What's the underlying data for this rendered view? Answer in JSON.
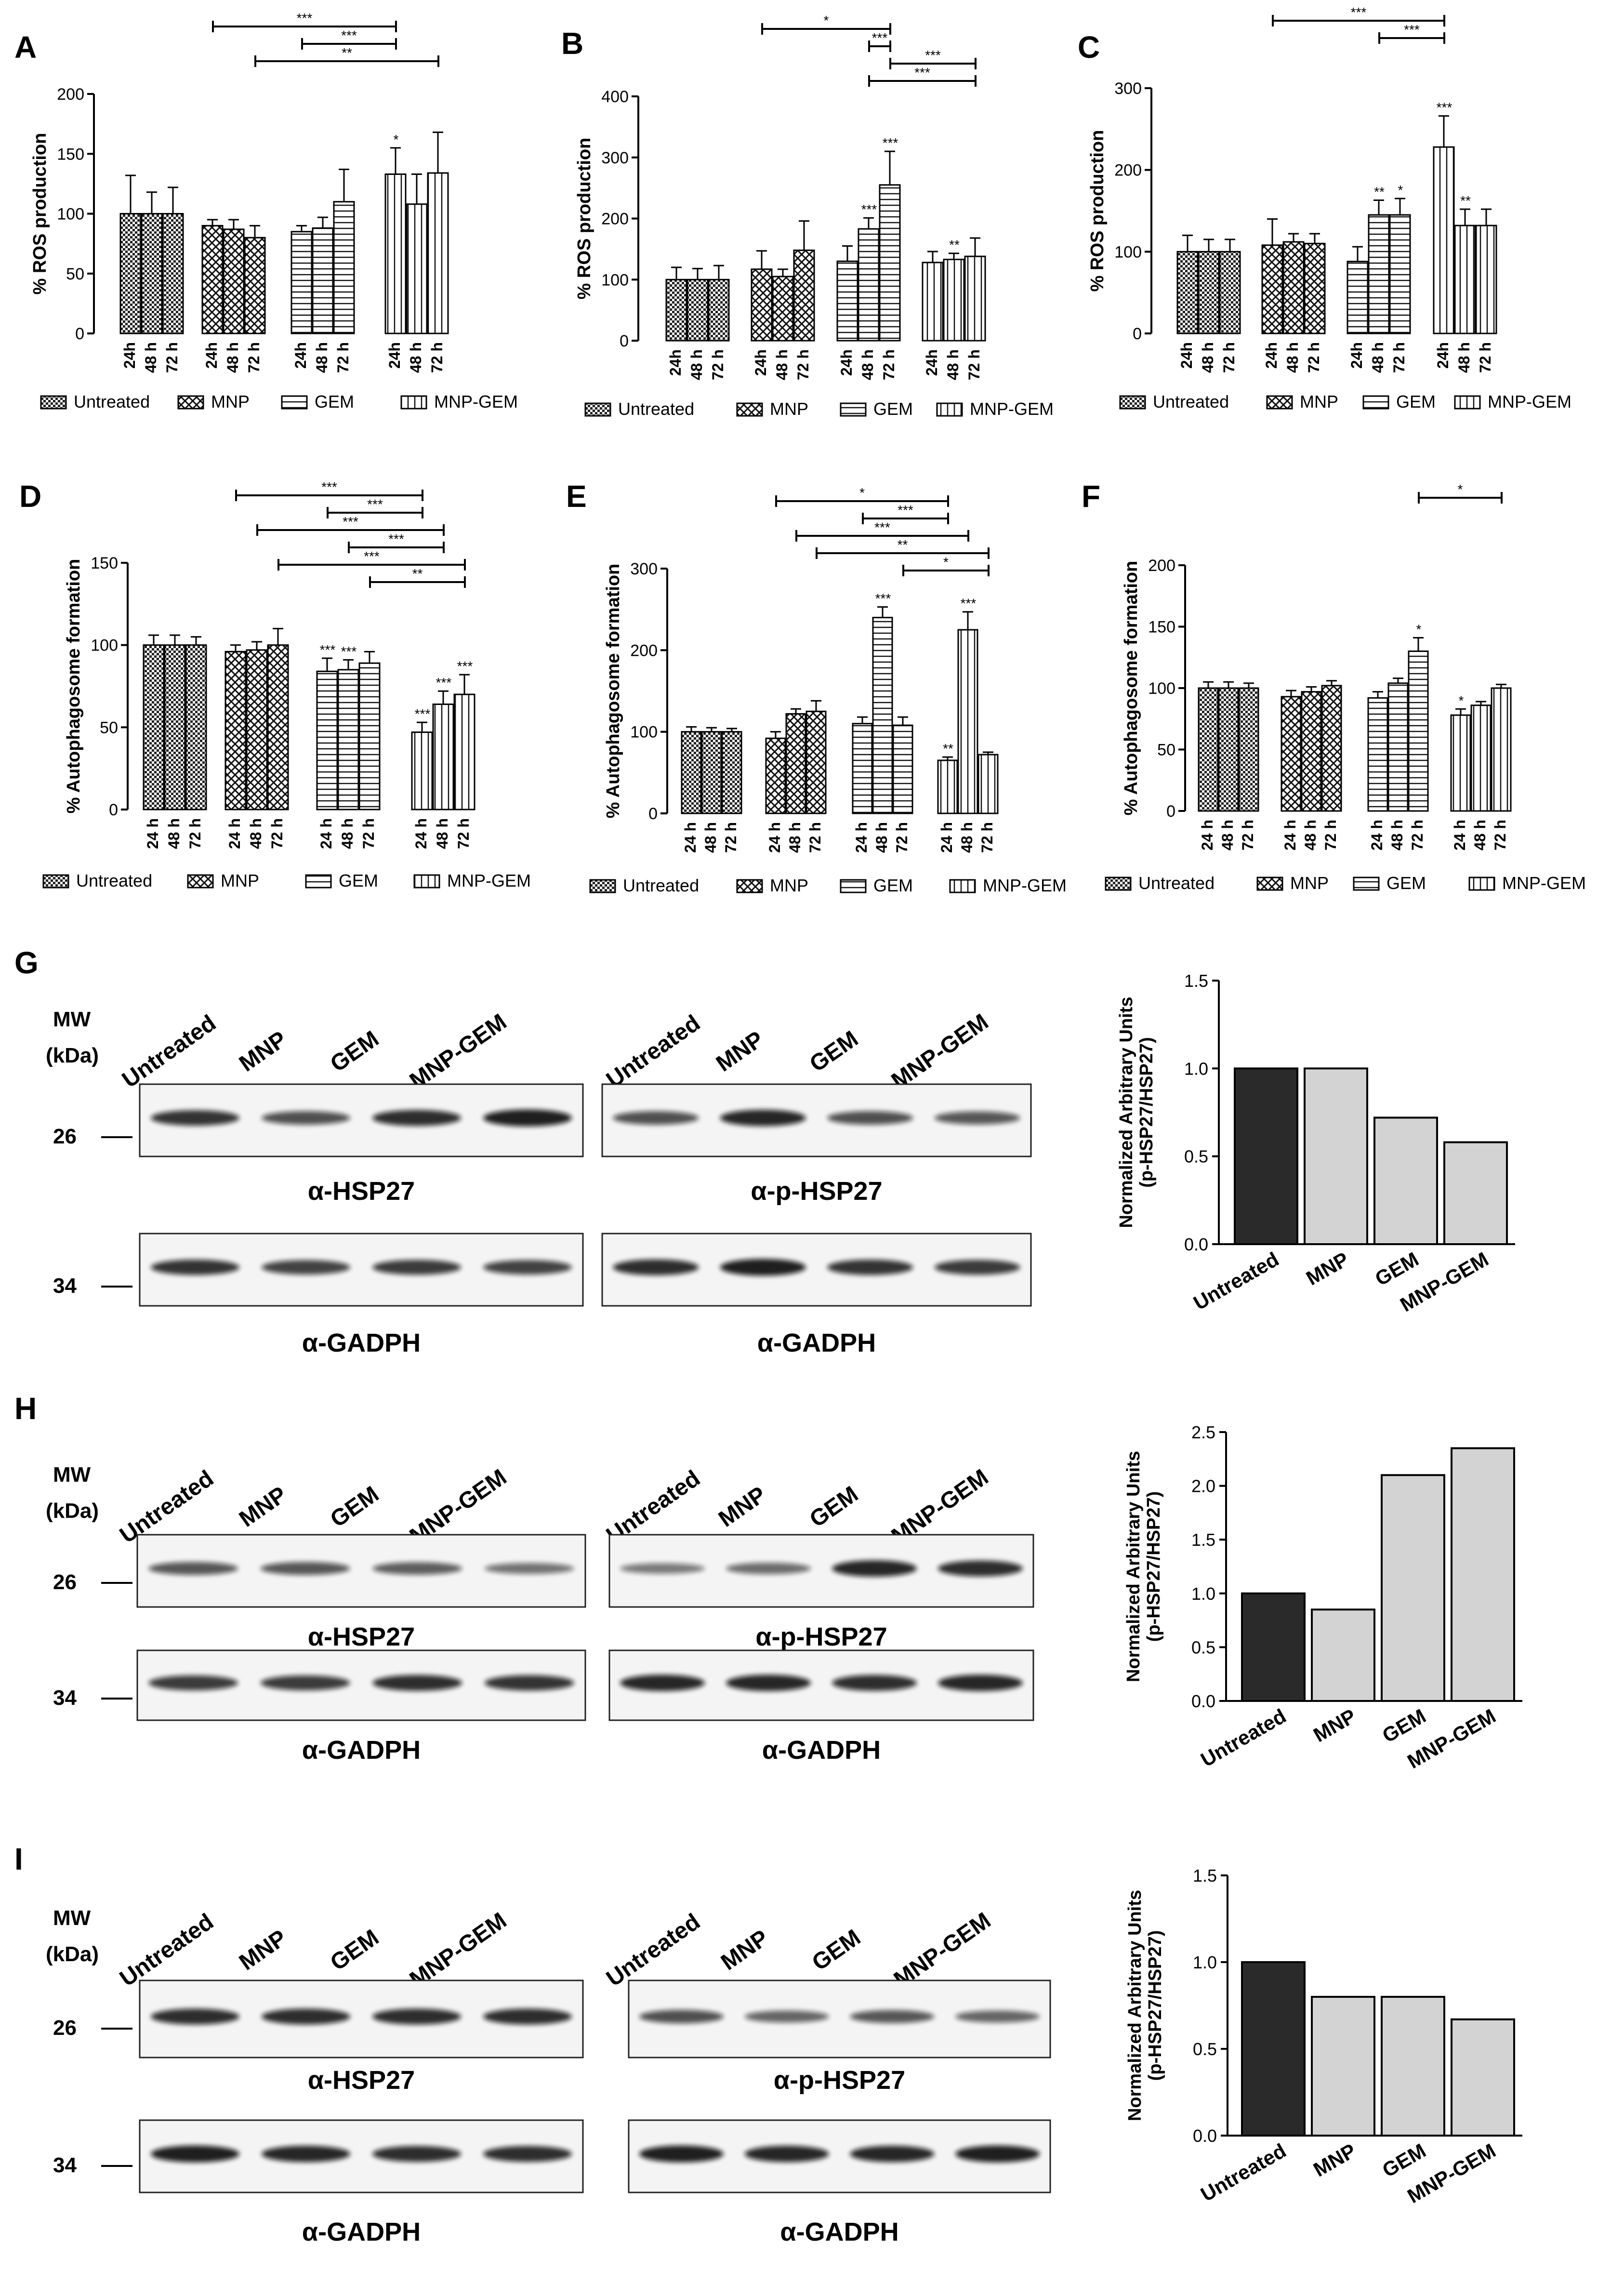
{
  "figure": {
    "legend_groups": [
      "Untreated",
      "MNP",
      "GEM",
      "MNP-GEM"
    ],
    "bar_colors": {
      "control": "#2a2a2a",
      "treated": "#d3d3d3",
      "stroke": "#000000"
    }
  },
  "chart_data": [
    {
      "panel": "A",
      "type": "bar",
      "ylabel": "% ROS production",
      "ylim": [
        0,
        200
      ],
      "yticks": [
        0,
        50,
        100,
        150,
        200
      ],
      "time_labels": [
        "24h",
        "48 h",
        "72 h"
      ],
      "groups": [
        "Untreated",
        "MNP",
        "GEM",
        "MNP-GEM"
      ],
      "values": [
        [
          100,
          100,
          100
        ],
        [
          90,
          87,
          80
        ],
        [
          85,
          88,
          110
        ],
        [
          133,
          108,
          134
        ]
      ],
      "errors": [
        [
          32,
          18,
          22
        ],
        [
          5,
          8,
          10
        ],
        [
          5,
          9,
          27
        ],
        [
          22,
          25,
          34
        ]
      ],
      "stars": [
        [
          "",
          "",
          ""
        ],
        [
          "",
          "",
          ""
        ],
        [
          "",
          "",
          ""
        ],
        [
          "*",
          "",
          ""
        ]
      ],
      "brackets": [
        {
          "from": [
            1,
            0
          ],
          "to": [
            3,
            0
          ],
          "label": "***"
        },
        {
          "from": [
            2,
            0
          ],
          "to": [
            3,
            0
          ],
          "label": "***"
        },
        {
          "from": [
            1,
            2
          ],
          "to": [
            3,
            2
          ],
          "label": "**"
        }
      ]
    },
    {
      "panel": "B",
      "type": "bar",
      "ylabel": "% ROS production",
      "ylim": [
        0,
        400
      ],
      "yticks": [
        0,
        100,
        200,
        300,
        400
      ],
      "time_labels": [
        "24h",
        "48 h",
        "72 h"
      ],
      "groups": [
        "Untreated",
        "MNP",
        "GEM",
        "MNP-GEM"
      ],
      "values": [
        [
          100,
          100,
          100
        ],
        [
          117,
          105,
          148
        ],
        [
          130,
          183,
          255
        ],
        [
          128,
          133,
          138
        ]
      ],
      "errors": [
        [
          20,
          18,
          23
        ],
        [
          30,
          12,
          48
        ],
        [
          25,
          18,
          55
        ],
        [
          18,
          10,
          30
        ]
      ],
      "stars": [
        [
          "",
          "",
          ""
        ],
        [
          "",
          "",
          ""
        ],
        [
          "",
          "***",
          "***"
        ],
        [
          "",
          "**",
          ""
        ]
      ],
      "brackets": [
        {
          "from": [
            1,
            0
          ],
          "to": [
            2,
            2
          ],
          "label": "*"
        },
        {
          "from": [
            2,
            1
          ],
          "to": [
            2,
            2
          ],
          "label": "***"
        },
        {
          "from": [
            2,
            2
          ],
          "to": [
            3,
            2
          ],
          "label": "***"
        },
        {
          "from": [
            2,
            1
          ],
          "to": [
            3,
            2
          ],
          "label": "***"
        }
      ]
    },
    {
      "panel": "C",
      "type": "bar",
      "ylabel": "% ROS production",
      "ylim": [
        0,
        300
      ],
      "yticks": [
        0,
        100,
        200,
        300
      ],
      "time_labels": [
        "24h",
        "48 h",
        "72 h"
      ],
      "groups": [
        "Untreated",
        "MNP",
        "GEM",
        "MNP-GEM"
      ],
      "values": [
        [
          100,
          100,
          100
        ],
        [
          108,
          112,
          110
        ],
        [
          88,
          145,
          145
        ],
        [
          228,
          132,
          132
        ]
      ],
      "errors": [
        [
          20,
          15,
          15
        ],
        [
          32,
          10,
          12
        ],
        [
          18,
          18,
          20
        ],
        [
          38,
          20,
          20
        ]
      ],
      "stars": [
        [
          "",
          "",
          ""
        ],
        [
          "",
          "",
          ""
        ],
        [
          "",
          "**",
          "*"
        ],
        [
          "***",
          "**",
          ""
        ]
      ],
      "brackets": [
        {
          "from": [
            1,
            0
          ],
          "to": [
            3,
            0
          ],
          "label": "***"
        },
        {
          "from": [
            2,
            1
          ],
          "to": [
            3,
            0
          ],
          "label": "***"
        }
      ]
    },
    {
      "panel": "D",
      "type": "bar",
      "ylabel": "% Autophagosome formation",
      "ylim": [
        0,
        150
      ],
      "yticks": [
        0,
        50,
        100,
        150
      ],
      "time_labels": [
        "24 h",
        "48 h",
        "72 h"
      ],
      "groups": [
        "Untreated",
        "MNP",
        "GEM",
        "MNP-GEM"
      ],
      "values": [
        [
          100,
          100,
          100
        ],
        [
          96,
          97,
          100
        ],
        [
          84,
          85,
          89
        ],
        [
          47,
          64,
          70
        ]
      ],
      "errors": [
        [
          6,
          6,
          5
        ],
        [
          4,
          5,
          10
        ],
        [
          8,
          6,
          7
        ],
        [
          6,
          8,
          12
        ]
      ],
      "stars": [
        [
          "",
          "",
          ""
        ],
        [
          "",
          "",
          ""
        ],
        [
          "***",
          "***",
          ""
        ],
        [
          "***",
          "***",
          "***"
        ]
      ],
      "brackets": [
        {
          "from": [
            1,
            0
          ],
          "to": [
            3,
            0
          ],
          "label": "***"
        },
        {
          "from": [
            2,
            0
          ],
          "to": [
            3,
            0
          ],
          "label": "***"
        },
        {
          "from": [
            1,
            1
          ],
          "to": [
            3,
            1
          ],
          "label": "***"
        },
        {
          "from": [
            2,
            1
          ],
          "to": [
            3,
            1
          ],
          "label": "***"
        },
        {
          "from": [
            1,
            2
          ],
          "to": [
            3,
            2
          ],
          "label": "***"
        },
        {
          "from": [
            2,
            2
          ],
          "to": [
            3,
            2
          ],
          "label": "**"
        }
      ]
    },
    {
      "panel": "E",
      "type": "bar",
      "ylabel": "% Autophagosome formation",
      "ylim": [
        0,
        300
      ],
      "yticks": [
        0,
        100,
        200,
        300
      ],
      "time_labels": [
        "24 h",
        "48 h",
        "72 h"
      ],
      "groups": [
        "Untreated",
        "MNP",
        "GEM",
        "MNP-GEM"
      ],
      "values": [
        [
          100,
          100,
          100
        ],
        [
          92,
          122,
          125
        ],
        [
          110,
          240,
          108
        ],
        [
          65,
          225,
          72
        ]
      ],
      "errors": [
        [
          6,
          5,
          4
        ],
        [
          8,
          6,
          13
        ],
        [
          8,
          13,
          10
        ],
        [
          4,
          22,
          3
        ]
      ],
      "stars": [
        [
          "",
          "",
          ""
        ],
        [
          "",
          "",
          ""
        ],
        [
          "",
          "***",
          ""
        ],
        [
          "**",
          "***",
          ""
        ]
      ],
      "brackets": [
        {
          "from": [
            1,
            0
          ],
          "to": [
            3,
            0
          ],
          "label": "*"
        },
        {
          "from": [
            2,
            0
          ],
          "to": [
            3,
            0
          ],
          "label": "***"
        },
        {
          "from": [
            1,
            1
          ],
          "to": [
            3,
            1
          ],
          "label": "***"
        },
        {
          "from": [
            1,
            2
          ],
          "to": [
            3,
            2
          ],
          "label": "**"
        },
        {
          "from": [
            2,
            2
          ],
          "to": [
            3,
            2
          ],
          "label": "*"
        }
      ]
    },
    {
      "panel": "F",
      "type": "bar",
      "ylabel": "% Autophagosome formation",
      "ylim": [
        0,
        200
      ],
      "yticks": [
        0,
        50,
        100,
        150,
        200
      ],
      "time_labels": [
        "24 h",
        "48 h",
        "72 h"
      ],
      "groups": [
        "Untreated",
        "MNP",
        "GEM",
        "MNP-GEM"
      ],
      "values": [
        [
          100,
          100,
          100
        ],
        [
          93,
          97,
          102
        ],
        [
          92,
          104,
          130
        ],
        [
          78,
          86,
          100
        ]
      ],
      "errors": [
        [
          5,
          5,
          4
        ],
        [
          5,
          4,
          4
        ],
        [
          5,
          4,
          11
        ],
        [
          5,
          3,
          3
        ]
      ],
      "stars": [
        [
          "",
          "",
          ""
        ],
        [
          "",
          "",
          ""
        ],
        [
          "",
          "",
          "*"
        ],
        [
          "*",
          "",
          ""
        ]
      ],
      "brackets": [
        {
          "from": [
            2,
            2
          ],
          "to": [
            3,
            2
          ],
          "label": "*"
        }
      ]
    },
    {
      "panel": "G",
      "type": "bar",
      "ylabel": "Normalized Arbitrary Units (p-HSP27/HSP27)",
      "ylim": [
        0,
        1.5
      ],
      "yticks": [
        "0.0",
        "0.5",
        "1.0",
        "1.5"
      ],
      "categories": [
        "Untreated",
        "MNP",
        "GEM",
        "MNP-GEM"
      ],
      "values": [
        1.0,
        1.0,
        0.72,
        0.58
      ]
    },
    {
      "panel": "H",
      "type": "bar",
      "ylabel": "Normalized Arbitrary Units (p-HSP27/HSP27)",
      "ylim": [
        0,
        2.5
      ],
      "yticks": [
        "0.0",
        "0.5",
        "1.0",
        "1.5",
        "2.0",
        "2.5"
      ],
      "categories": [
        "Untreated",
        "MNP",
        "GEM",
        "MNP-GEM"
      ],
      "values": [
        1.0,
        0.85,
        2.1,
        2.35
      ]
    },
    {
      "panel": "I",
      "type": "bar",
      "ylabel": "Normalized Arbitrary Units (p-HSP27/HSP27)",
      "ylim": [
        0,
        1.5
      ],
      "yticks": [
        "0.0",
        "0.5",
        "1.0",
        "1.5"
      ],
      "categories": [
        "Untreated",
        "MNP",
        "GEM",
        "MNP-GEM"
      ],
      "values": [
        1.0,
        0.8,
        0.8,
        0.67
      ]
    }
  ],
  "blots": [
    {
      "panel": "G",
      "mw_label": "MW",
      "kda_label": "(kDa)",
      "lanes": [
        "Untreated",
        "MNP",
        "GEM",
        "MNP-GEM"
      ],
      "mw_top": "26",
      "mw_bottom": "34",
      "left_top_label": "α-HSP27",
      "right_top_label": "α-p-HSP27",
      "left_bottom_label": "α-GADPH",
      "right_bottom_label": "α-GADPH",
      "intensity": {
        "hsp27": [
          0.8,
          0.6,
          0.85,
          0.95
        ],
        "phsp27": [
          0.6,
          0.9,
          0.6,
          0.55
        ],
        "gapdh_l": [
          0.8,
          0.7,
          0.75,
          0.7
        ],
        "gapdh_r": [
          0.85,
          0.95,
          0.8,
          0.75
        ]
      }
    },
    {
      "panel": "H",
      "mw_label": "MW",
      "kda_label": "(kDa)",
      "lanes": [
        "Untreated",
        "MNP",
        "GEM",
        "MNP-GEM"
      ],
      "mw_top": "26",
      "mw_bottom": "34",
      "left_top_label": "α-HSP27",
      "right_top_label": "α-p-HSP27",
      "left_bottom_label": "α-GADPH",
      "right_bottom_label": "α-GADPH",
      "intensity": {
        "hsp27": [
          0.55,
          0.55,
          0.5,
          0.35
        ],
        "phsp27": [
          0.3,
          0.4,
          0.9,
          0.85
        ],
        "gapdh_l": [
          0.75,
          0.75,
          0.85,
          0.8
        ],
        "gapdh_r": [
          0.9,
          0.9,
          0.85,
          0.9
        ]
      }
    },
    {
      "panel": "I",
      "mw_label": "MW",
      "kda_label": "(kDa)",
      "lanes": [
        "Untreated",
        "MNP",
        "GEM",
        "MNP-GEM"
      ],
      "mw_top": "26",
      "mw_bottom": "34",
      "left_top_label": "α-HSP27",
      "right_top_label": "α-p-HSP27",
      "left_bottom_label": "α-GADPH",
      "right_bottom_label": "α-GADPH",
      "intensity": {
        "hsp27": [
          0.85,
          0.85,
          0.85,
          0.85
        ],
        "phsp27": [
          0.6,
          0.45,
          0.55,
          0.45
        ],
        "gapdh_l": [
          0.95,
          0.9,
          0.85,
          0.85
        ],
        "gapdh_r": [
          0.95,
          0.9,
          0.9,
          0.95
        ]
      }
    }
  ]
}
